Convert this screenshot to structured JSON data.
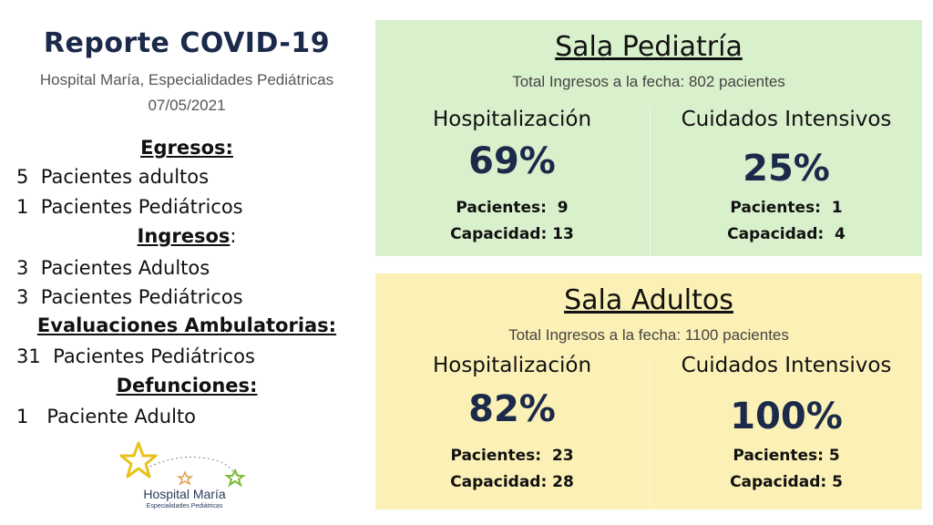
{
  "report": {
    "title": "Reporte COVID-19",
    "subtitle": "Hospital María, Especialidades Pediátricas",
    "date": "07/05/2021"
  },
  "sections": {
    "egresos": {
      "heading": "Egresos:",
      "lines": [
        {
          "num": "5",
          "text": "Pacientes adultos"
        },
        {
          "num": "1",
          "text": "Pacientes Pediátricos"
        }
      ]
    },
    "ingresos": {
      "heading": "Ingresos",
      "colon": ":",
      "lines": [
        {
          "num": "3",
          "text": "Pacientes Adultos"
        },
        {
          "num": "3",
          "text": "Pacientes Pediátricos"
        }
      ]
    },
    "evaluaciones": {
      "heading": "Evaluaciones Ambulatorias:",
      "lines": [
        {
          "num": "31",
          "text": "Pacientes Pediátricos"
        }
      ]
    },
    "defunciones": {
      "heading": "Defunciones:",
      "lines": [
        {
          "num": "1",
          "text": "Paciente Adulto"
        }
      ]
    }
  },
  "logo": {
    "name": "Hospital María",
    "tagline": "Especialidades Pediátricas",
    "colors": {
      "star_yellow": "#e8c21a",
      "star_green": "#7dbb3a",
      "text": "#2a3a5e"
    }
  },
  "panels": {
    "pediatria": {
      "title": "Sala Pediatría",
      "total": "Total Ingresos a la fecha: 802 pacientes",
      "background": "#d9f0cc",
      "hospitalizacion": {
        "heading": "Hospitalización",
        "percent": "69%",
        "pacientes": "Pacientes:  9",
        "capacidad": "Capacidad: 13"
      },
      "cuidados": {
        "heading": "Cuidados Intensivos",
        "percent": "25%",
        "pacientes": "Pacientes:  1",
        "capacidad": "Capacidad:  4"
      }
    },
    "adultos": {
      "title": "Sala Adultos",
      "total": "Total Ingresos a la fecha: 1100 pacientes",
      "background": "#fbf0b5",
      "hospitalizacion": {
        "heading": "Hospitalización",
        "percent": "82%",
        "pacientes": "Pacientes:  23",
        "capacidad": "Capacidad: 28"
      },
      "cuidados": {
        "heading": "Cuidados Intensivos",
        "percent": "100%",
        "pacientes": "Pacientes: 5",
        "capacidad": "Capacidad: 5"
      }
    }
  }
}
